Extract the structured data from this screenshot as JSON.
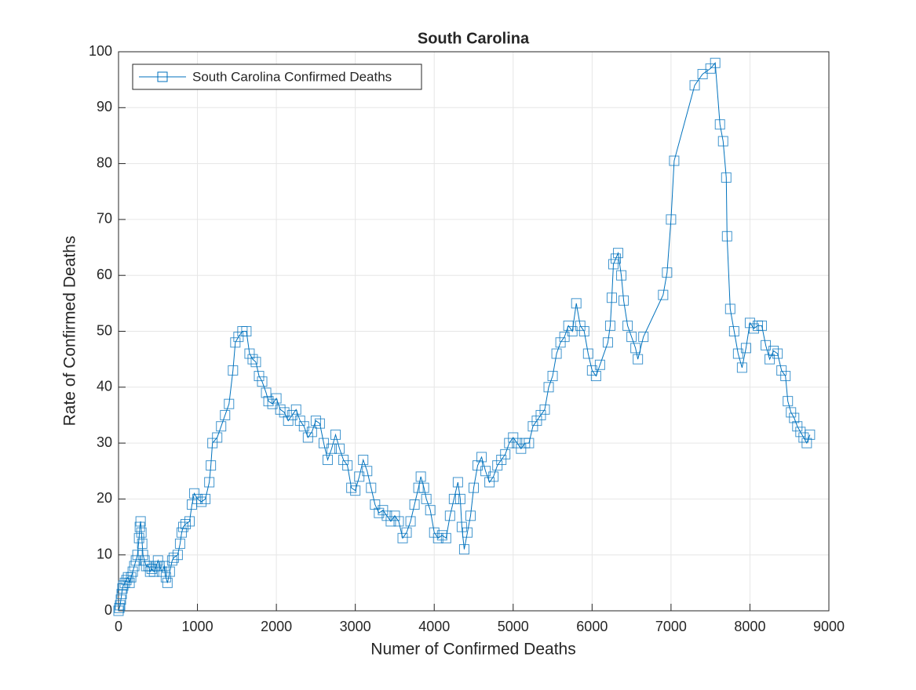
{
  "chart_data": {
    "type": "line",
    "title": "South Carolina",
    "xlabel": "Numer of Confirmed Deaths",
    "ylabel": "Rate of Confirmed Deaths",
    "x": [
      0,
      10,
      20,
      30,
      40,
      50,
      60,
      80,
      100,
      120,
      140,
      160,
      180,
      200,
      220,
      240,
      260,
      270,
      280,
      290,
      300,
      310,
      330,
      350,
      380,
      400,
      420,
      450,
      480,
      500,
      520,
      550,
      580,
      600,
      620,
      650,
      680,
      700,
      750,
      780,
      800,
      820,
      850,
      900,
      930,
      960,
      1000,
      1050,
      1100,
      1150,
      1170,
      1190,
      1250,
      1300,
      1350,
      1400,
      1450,
      1480,
      1520,
      1570,
      1620,
      1660,
      1700,
      1740,
      1780,
      1820,
      1870,
      1900,
      1950,
      2000,
      2050,
      2100,
      2150,
      2200,
      2250,
      2300,
      2350,
      2400,
      2450,
      2500,
      2550,
      2600,
      2650,
      2700,
      2750,
      2800,
      2850,
      2900,
      2950,
      3000,
      3050,
      3100,
      3150,
      3200,
      3250,
      3300,
      3350,
      3400,
      3450,
      3500,
      3550,
      3600,
      3650,
      3700,
      3750,
      3800,
      3830,
      3870,
      3900,
      3950,
      4000,
      4050,
      4100,
      4150,
      4200,
      4250,
      4300,
      4330,
      4350,
      4380,
      4420,
      4460,
      4500,
      4550,
      4600,
      4650,
      4700,
      4750,
      4800,
      4850,
      4900,
      4950,
      5000,
      5050,
      5100,
      5150,
      5200,
      5250,
      5300,
      5350,
      5400,
      5450,
      5500,
      5550,
      5600,
      5650,
      5700,
      5750,
      5800,
      5850,
      5900,
      5950,
      6000,
      6050,
      6100,
      6200,
      6230,
      6250,
      6270,
      6300,
      6330,
      6370,
      6400,
      6450,
      6500,
      6550,
      6580,
      6650,
      6900,
      6950,
      7000,
      7040,
      7300,
      7400,
      7500,
      7560,
      7620,
      7660,
      7700,
      7710,
      7750,
      7800,
      7850,
      7900,
      7950,
      8000,
      8050,
      8100,
      8150,
      8200,
      8250,
      8300,
      8350,
      8400,
      8450,
      8480,
      8520,
      8560,
      8600,
      8640,
      8680,
      8720,
      8760
    ],
    "series": [
      {
        "name": "South Carolina Confirmed Deaths",
        "color": "#0072bd",
        "values": [
          0,
          0.5,
          1,
          2,
          3,
          4,
          4.5,
          5,
          5.5,
          6,
          5,
          6,
          7,
          8,
          9,
          10,
          13,
          15,
          16,
          14,
          12,
          10,
          9,
          8,
          8,
          7,
          7.5,
          7,
          8,
          9,
          8,
          7,
          8,
          6,
          5,
          7,
          9,
          9.5,
          10,
          12,
          14,
          15,
          15.5,
          16,
          19,
          21,
          20,
          19.5,
          20,
          23,
          26,
          30,
          31,
          33,
          35,
          37,
          43,
          48,
          49,
          50,
          50,
          46,
          45,
          44.5,
          42,
          41,
          39,
          37.5,
          37,
          38,
          36,
          35.5,
          34,
          35,
          36,
          34,
          33,
          31,
          32,
          34,
          33.5,
          30,
          27,
          29,
          31.5,
          29,
          27,
          26,
          22,
          21.5,
          24,
          27,
          25,
          22,
          19,
          17.5,
          18,
          17,
          16,
          17,
          16,
          13,
          14,
          16,
          19,
          22,
          24,
          22,
          20,
          18,
          14,
          13,
          13.5,
          13,
          17,
          20,
          23,
          20,
          15,
          11,
          14,
          17,
          22,
          26,
          27.5,
          25,
          23,
          24,
          26,
          27,
          28,
          30,
          31,
          30,
          29,
          30,
          30,
          33,
          34,
          35,
          36,
          40,
          42,
          46,
          48,
          49,
          51,
          50,
          55,
          51,
          50,
          46,
          43,
          42,
          44,
          48,
          51,
          56,
          62,
          63,
          64,
          60,
          55.5,
          51,
          49,
          47,
          45,
          49,
          56.5,
          60.5,
          70,
          80.5,
          94,
          96,
          97,
          98,
          87,
          84,
          77.5,
          67,
          54,
          50,
          46,
          43.5,
          47,
          51.5,
          50.5,
          51,
          51,
          47.5,
          45,
          46.5,
          46,
          43,
          42,
          37.5,
          35.5,
          34.5,
          33,
          32,
          31,
          30,
          31.5
        ]
      }
    ],
    "xlim": [
      0,
      9000
    ],
    "xticks": [
      0,
      1000,
      2000,
      3000,
      4000,
      5000,
      6000,
      7000,
      8000,
      9000
    ],
    "ylim": [
      0,
      100
    ],
    "yticks": [
      0,
      10,
      20,
      30,
      40,
      50,
      60,
      70,
      80,
      90,
      100
    ],
    "grid": true,
    "legend": "upper-left"
  }
}
